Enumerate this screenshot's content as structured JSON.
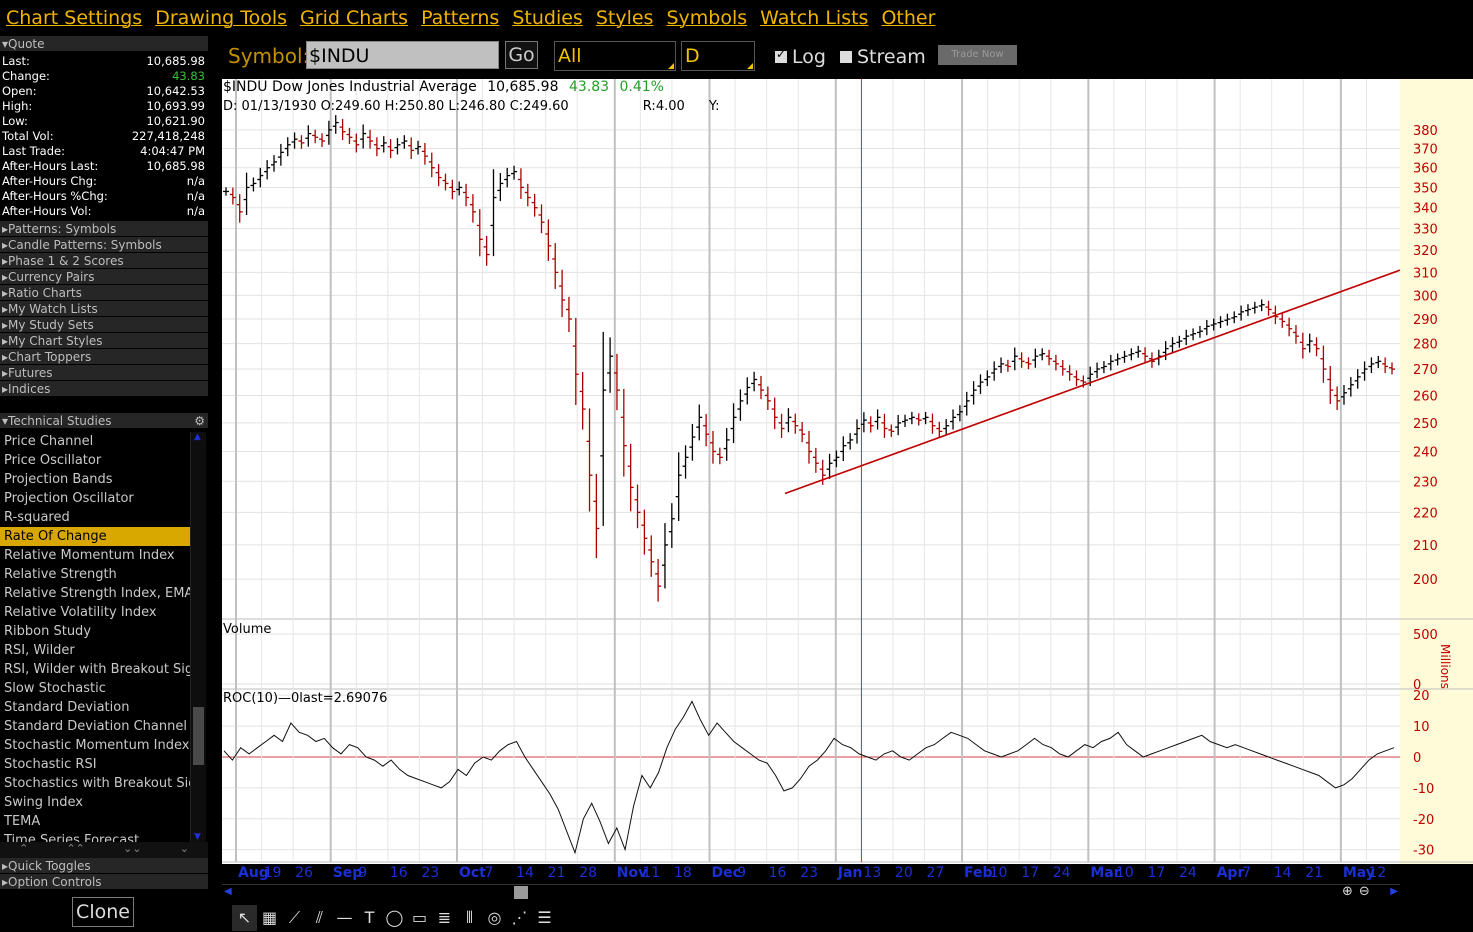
{
  "menu": [
    "Chart Settings",
    "Drawing Tools",
    "Grid Charts",
    "Patterns",
    "Studies",
    "Styles",
    "Symbols",
    "Watch Lists",
    "Other"
  ],
  "quote": {
    "title": "Quote",
    "rows": [
      {
        "label": "Last:",
        "value": "10,685.98"
      },
      {
        "label": "Change:",
        "value": "43.83",
        "positive": true
      },
      {
        "label": "Open:",
        "value": "10,642.53"
      },
      {
        "label": "High:",
        "value": "10,693.99"
      },
      {
        "label": "Low:",
        "value": "10,621.90"
      },
      {
        "label": "Total Vol:",
        "value": "227,418,248"
      },
      {
        "label": "Last Trade:",
        "value": "4:04:47 PM"
      },
      {
        "label": "After-Hours Last:",
        "value": "10,685.98"
      },
      {
        "label": "After-Hours Chg:",
        "value": "n/a"
      },
      {
        "label": "After-Hours %Chg:",
        "value": "n/a"
      },
      {
        "label": "After-Hours Vol:",
        "value": "n/a"
      }
    ]
  },
  "sections": [
    "Patterns: Symbols",
    "Candle Patterns: Symbols",
    "Phase 1 & 2 Scores",
    "Currency Pairs",
    "Ratio Charts",
    "My Watch Lists",
    "My Study Sets",
    "My Chart Styles",
    "Chart Toppers",
    "Futures",
    "Indices"
  ],
  "technical_studies": {
    "title": "Technical Studies",
    "items": [
      "Price Channel",
      "Price Oscillator",
      "Projection Bands",
      "Projection Oscillator",
      "R-squared",
      "Rate Of Change",
      "Relative Momentum Index",
      "Relative Strength",
      "Relative Strength Index, EMA",
      "Relative Volatility Index",
      "Ribbon Study",
      "RSI, Wilder",
      "RSI, Wilder with Breakout Sign",
      "Slow Stochastic",
      "Standard Deviation",
      "Standard Deviation Channel",
      "Stochastic Momentum Index",
      "Stochastic RSI",
      "Stochastics with Breakout Sign",
      "Swing Index",
      "TEMA",
      "Time Series Forecast"
    ],
    "selected": "Rate Of Change"
  },
  "bottom_sections": [
    "Quick Toggles",
    "Option Controls"
  ],
  "clone_label": "Clone",
  "toolbar": {
    "symbol_label": "Symbol:",
    "symbol_value": "$INDU",
    "go_label": "Go",
    "range_value": "All",
    "period_value": "D",
    "log_label": "Log",
    "log_checked": true,
    "stream_label": "Stream",
    "stream_checked": false,
    "trade_label": "Trade Now"
  },
  "chart": {
    "header_symbol": "$INDU Dow Jones Industrial Average",
    "header_last": "10,685.98",
    "header_change": "43.83",
    "header_pct": "0.41%",
    "ohlc": {
      "date": "01/13/1930",
      "open": "249.60",
      "high": "250.80",
      "low": "246.80",
      "close": "249.60",
      "r": "4.00",
      "y": ""
    },
    "volume_label": "Volume",
    "volume_unit": "Millions",
    "roc_label": "ROC(10)",
    "roc_last": "0last=2.69076"
  },
  "chart_data": {
    "type": "ohlc",
    "scale": "log",
    "price_ticks": [
      200,
      210,
      220,
      230,
      240,
      250,
      260,
      270,
      280,
      290,
      300,
      310,
      320,
      330,
      340,
      350,
      360,
      370,
      380
    ],
    "volume_ticks": [
      0,
      500
    ],
    "roc_ticks": [
      -30,
      -20,
      -10,
      0,
      10,
      20
    ],
    "x_labels": [
      {
        "label": "Aug",
        "month": true
      },
      {
        "label": "19"
      },
      {
        "label": "26"
      },
      {
        "label": "Sep",
        "month": true
      },
      {
        "label": "9"
      },
      {
        "label": "16"
      },
      {
        "label": "23"
      },
      {
        "label": "Oct",
        "month": true
      },
      {
        "label": "7"
      },
      {
        "label": "14"
      },
      {
        "label": "21"
      },
      {
        "label": "28"
      },
      {
        "label": "Nov",
        "month": true
      },
      {
        "label": "11"
      },
      {
        "label": "18"
      },
      {
        "label": "Dec",
        "month": true
      },
      {
        "label": "9"
      },
      {
        "label": "16"
      },
      {
        "label": "23"
      },
      {
        "label": "Jan",
        "month": true
      },
      {
        "label": "13"
      },
      {
        "label": "20"
      },
      {
        "label": "27"
      },
      {
        "label": "Feb",
        "month": true
      },
      {
        "label": "10"
      },
      {
        "label": "17"
      },
      {
        "label": "24"
      },
      {
        "label": "Mar",
        "month": true
      },
      {
        "label": "10"
      },
      {
        "label": "17"
      },
      {
        "label": "24"
      },
      {
        "label": "Apr",
        "month": true
      },
      {
        "label": "7"
      },
      {
        "label": "14"
      },
      {
        "label": "21"
      },
      {
        "label": "May",
        "month": true
      },
      {
        "label": "12"
      }
    ],
    "price_closes": [
      348,
      345,
      338,
      350,
      352,
      356,
      360,
      363,
      368,
      372,
      375,
      373,
      378,
      376,
      374,
      380,
      384,
      379,
      376,
      372,
      378,
      374,
      370,
      373,
      369,
      372,
      374,
      369,
      371,
      366,
      360,
      355,
      352,
      348,
      350,
      345,
      338,
      325,
      318,
      345,
      352,
      356,
      358,
      350,
      345,
      340,
      333,
      322,
      310,
      298,
      290,
      268,
      255,
      232,
      215,
      262,
      275,
      262,
      242,
      228,
      220,
      212,
      205,
      198,
      210,
      218,
      232,
      238,
      245,
      252,
      246,
      240,
      238,
      244,
      252,
      258,
      263,
      266,
      262,
      258,
      252,
      248,
      252,
      249,
      246,
      240,
      236,
      232,
      236,
      238,
      242,
      244,
      248,
      251,
      249,
      252,
      248,
      247,
      250,
      251,
      252,
      251,
      252,
      249,
      247,
      249,
      252,
      254,
      258,
      262,
      265,
      267,
      270,
      272,
      271,
      275,
      273,
      272,
      275,
      276,
      274,
      272,
      270,
      268,
      266,
      265,
      268,
      270,
      271,
      273,
      274,
      275,
      276,
      277,
      275,
      273,
      275,
      278,
      280,
      281,
      283,
      284,
      285,
      287,
      288,
      289,
      290,
      291,
      293,
      294,
      295,
      296,
      294,
      291,
      289,
      286,
      283,
      278,
      281,
      278,
      270,
      262,
      258,
      261,
      264,
      267,
      270,
      272,
      273,
      271,
      270
    ],
    "roc_values": [
      2,
      -1,
      3,
      1,
      3,
      5,
      7,
      5,
      11,
      8,
      7,
      5,
      6,
      3,
      1,
      4,
      3,
      0,
      -1,
      -3,
      -1,
      -4,
      -6,
      -7,
      -8,
      -9,
      -10,
      -8,
      -4,
      -6,
      -2,
      0,
      -1,
      2,
      4,
      5,
      0,
      -4,
      -8,
      -12,
      -17,
      -24,
      -31,
      -20,
      -15,
      -21,
      -28,
      -23,
      -30,
      -16,
      -6,
      -10,
      -5,
      3,
      9,
      13,
      18,
      12,
      7,
      11,
      8,
      5,
      3,
      1,
      -1,
      -2,
      -6,
      -11,
      -10,
      -7,
      -3,
      -1,
      2,
      6,
      4,
      3,
      1,
      0,
      -1,
      1,
      2,
      0,
      -1,
      1,
      3,
      4,
      6,
      8,
      7,
      6,
      4,
      2,
      1,
      0,
      1,
      2,
      4,
      6,
      4,
      3,
      1,
      0,
      2,
      4,
      3,
      5,
      6,
      8,
      4,
      2,
      0,
      1,
      2,
      3,
      4,
      5,
      6,
      7,
      5,
      4,
      3,
      4,
      3,
      2,
      1,
      0,
      -1,
      -2,
      -3,
      -4,
      -5,
      -6,
      -8,
      -10,
      -9,
      -7,
      -4,
      -1,
      1,
      2,
      3
    ],
    "trendline": {
      "from_close": 226,
      "to_close": 311
    }
  }
}
